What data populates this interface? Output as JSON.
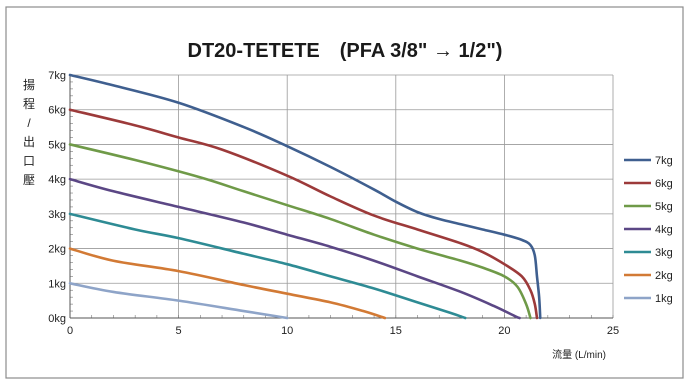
{
  "chart_data": {
    "type": "line",
    "title": "DT20-TETETE　(PFA 3/8\" → 1/2\")",
    "xlabel": "流量 (L/min)",
    "ylabel_chars": [
      "揚",
      "程",
      "/",
      "出",
      "口",
      "壓"
    ],
    "xlim": [
      0,
      25
    ],
    "ylim": [
      0,
      7
    ],
    "x_ticks": [
      "0",
      "5",
      "10",
      "15",
      "20",
      "25"
    ],
    "y_ticks": [
      "0kg",
      "1kg",
      "2kg",
      "3kg",
      "4kg",
      "5kg",
      "6kg",
      "7kg"
    ],
    "grid": true,
    "legend_position": "right",
    "series": [
      {
        "name": "7kg",
        "color": "#3f5f8f",
        "points": [
          [
            0,
            7.0
          ],
          [
            2,
            6.7
          ],
          [
            5,
            6.2
          ],
          [
            8,
            5.5
          ],
          [
            10,
            4.95
          ],
          [
            12,
            4.35
          ],
          [
            14,
            3.7
          ],
          [
            15,
            3.35
          ],
          [
            16,
            3.05
          ],
          [
            17,
            2.85
          ],
          [
            18,
            2.7
          ],
          [
            19,
            2.55
          ],
          [
            20,
            2.4
          ],
          [
            20.8,
            2.25
          ],
          [
            21.2,
            2.1
          ],
          [
            21.4,
            1.8
          ],
          [
            21.5,
            1.2
          ],
          [
            21.6,
            0.6
          ],
          [
            21.65,
            0
          ]
        ]
      },
      {
        "name": "6kg",
        "color": "#9c3a3a",
        "points": [
          [
            0,
            6.0
          ],
          [
            3,
            5.55
          ],
          [
            5,
            5.2
          ],
          [
            7,
            4.85
          ],
          [
            10,
            4.1
          ],
          [
            12,
            3.5
          ],
          [
            14,
            2.95
          ],
          [
            16,
            2.55
          ],
          [
            18,
            2.15
          ],
          [
            19,
            1.9
          ],
          [
            20,
            1.55
          ],
          [
            20.8,
            1.2
          ],
          [
            21.2,
            0.8
          ],
          [
            21.4,
            0.4
          ],
          [
            21.5,
            0
          ]
        ]
      },
      {
        "name": "5kg",
        "color": "#6f9a48",
        "points": [
          [
            0,
            5.0
          ],
          [
            3,
            4.55
          ],
          [
            6,
            4.05
          ],
          [
            8,
            3.65
          ],
          [
            10,
            3.25
          ],
          [
            12,
            2.85
          ],
          [
            14,
            2.4
          ],
          [
            16,
            2.0
          ],
          [
            18,
            1.65
          ],
          [
            19,
            1.45
          ],
          [
            20,
            1.2
          ],
          [
            20.6,
            0.9
          ],
          [
            21,
            0.4
          ],
          [
            21.2,
            0
          ]
        ]
      },
      {
        "name": "4kg",
        "color": "#5b4785",
        "points": [
          [
            0,
            4.0
          ],
          [
            2,
            3.65
          ],
          [
            5,
            3.2
          ],
          [
            8,
            2.75
          ],
          [
            10,
            2.4
          ],
          [
            12,
            2.05
          ],
          [
            14,
            1.65
          ],
          [
            16,
            1.2
          ],
          [
            18,
            0.75
          ],
          [
            19.5,
            0.35
          ],
          [
            20.5,
            0.05
          ],
          [
            20.7,
            0
          ]
        ]
      },
      {
        "name": "3kg",
        "color": "#2e8b94",
        "points": [
          [
            0,
            3.0
          ],
          [
            3,
            2.55
          ],
          [
            5,
            2.3
          ],
          [
            8,
            1.85
          ],
          [
            10,
            1.55
          ],
          [
            12,
            1.2
          ],
          [
            14,
            0.85
          ],
          [
            16,
            0.45
          ],
          [
            17.5,
            0.15
          ],
          [
            18.2,
            0
          ]
        ]
      },
      {
        "name": "2kg",
        "color": "#d27a35",
        "points": [
          [
            0,
            2.0
          ],
          [
            2,
            1.65
          ],
          [
            5,
            1.35
          ],
          [
            8,
            0.95
          ],
          [
            10,
            0.7
          ],
          [
            12,
            0.45
          ],
          [
            13.5,
            0.2
          ],
          [
            14.5,
            0
          ]
        ]
      },
      {
        "name": "1kg",
        "color": "#8ea4c8",
        "points": [
          [
            0,
            1.0
          ],
          [
            2,
            0.75
          ],
          [
            5,
            0.5
          ],
          [
            8,
            0.2
          ],
          [
            10,
            0
          ]
        ]
      }
    ]
  }
}
